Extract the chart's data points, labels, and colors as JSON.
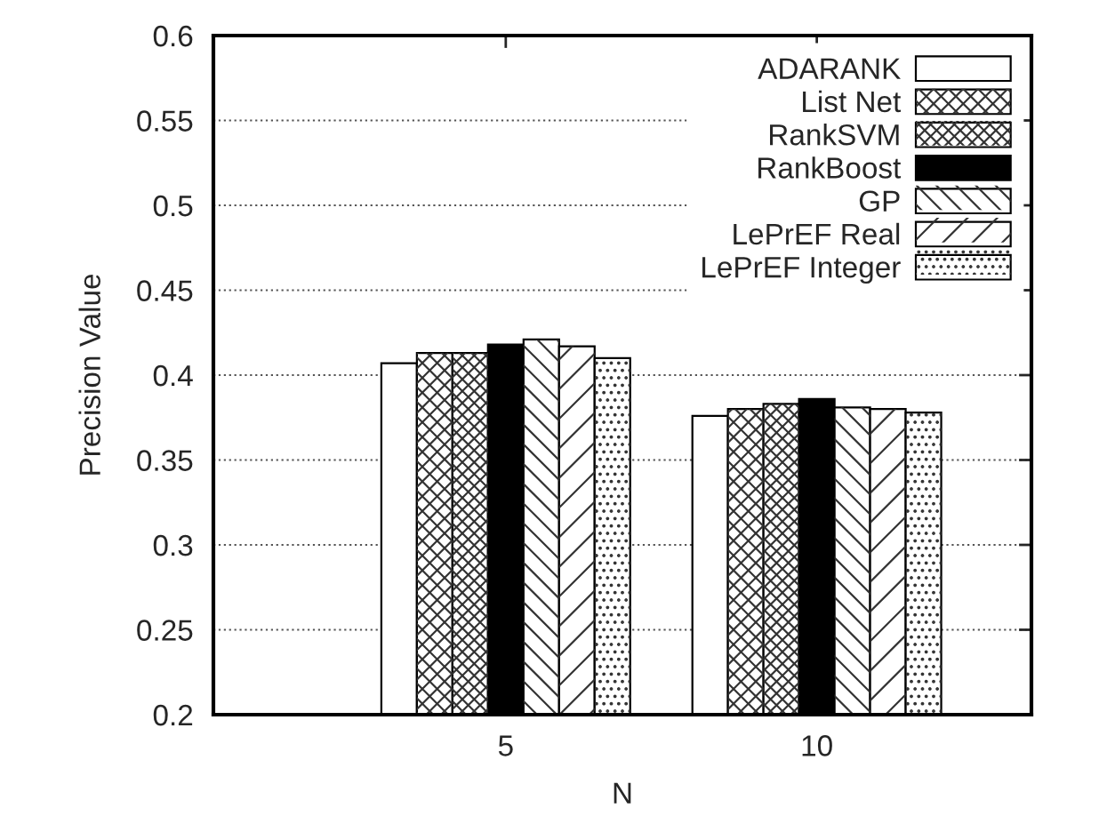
{
  "chart_data": {
    "type": "bar",
    "xlabel": "N",
    "ylabel": "Precision Value",
    "categories": [
      "5",
      "10"
    ],
    "series": [
      {
        "name": "ADARANK",
        "color": "#ffffff",
        "values": [
          0.407,
          0.376
        ]
      },
      {
        "name": "List Net",
        "color": "#ffffff",
        "values": [
          0.413,
          0.38
        ]
      },
      {
        "name": "RankSVM",
        "color": "#ffffff",
        "values": [
          0.413,
          0.383
        ]
      },
      {
        "name": "RankBoost",
        "color": "#000000",
        "values": [
          0.418,
          0.386
        ]
      },
      {
        "name": "GP",
        "color": "#ffffff",
        "values": [
          0.421,
          0.381
        ]
      },
      {
        "name": "LePrEF Real",
        "color": "#ffffff",
        "values": [
          0.417,
          0.38
        ]
      },
      {
        "name": "LePrEF Integer",
        "color": "#ffffff",
        "values": [
          0.41,
          0.378
        ]
      }
    ],
    "ylim": [
      0.2,
      0.6
    ],
    "yticks": [
      0.2,
      0.25,
      0.3,
      0.35,
      0.4,
      0.45,
      0.5,
      0.55,
      0.6
    ],
    "grid": "y",
    "legend": "top right"
  }
}
